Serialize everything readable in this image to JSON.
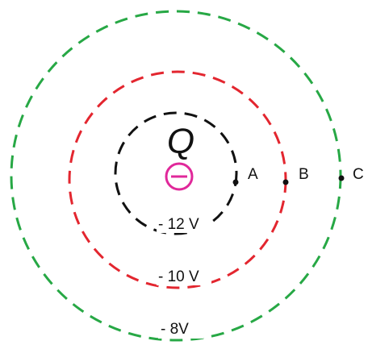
{
  "charge": {
    "label": "Q",
    "sign_symbol": "−",
    "color": "#e0289a"
  },
  "equipotentials": [
    {
      "label": "- 12 V",
      "color": "#111111"
    },
    {
      "label": "- 10 V",
      "color": "#e3262f"
    },
    {
      "label": "- 8V",
      "color": "#27a845"
    }
  ],
  "points": [
    {
      "label": "A"
    },
    {
      "label": "B"
    },
    {
      "label": "C"
    }
  ]
}
